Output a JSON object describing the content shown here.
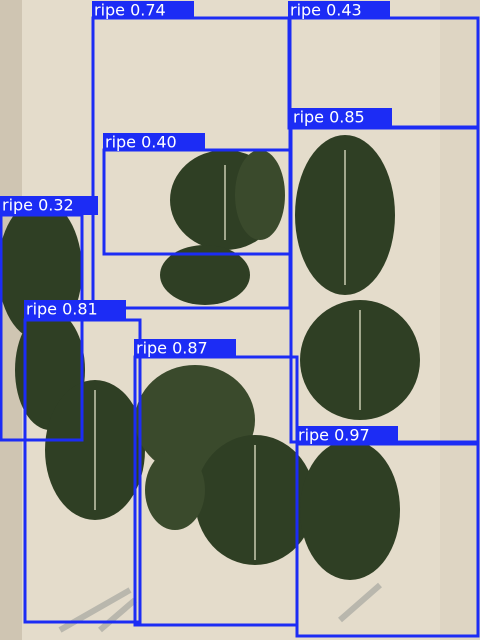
{
  "detections": [
    {
      "label": "ripe 0.74"
    },
    {
      "label": "ripe 0.43"
    },
    {
      "label": "ripe 0.85"
    },
    {
      "label": "ripe 0.40"
    },
    {
      "label": "ripe 0.32"
    },
    {
      "label": "ripe 0.81"
    },
    {
      "label": "ripe 0.87"
    },
    {
      "label": "ripe 0.97"
    }
  ]
}
